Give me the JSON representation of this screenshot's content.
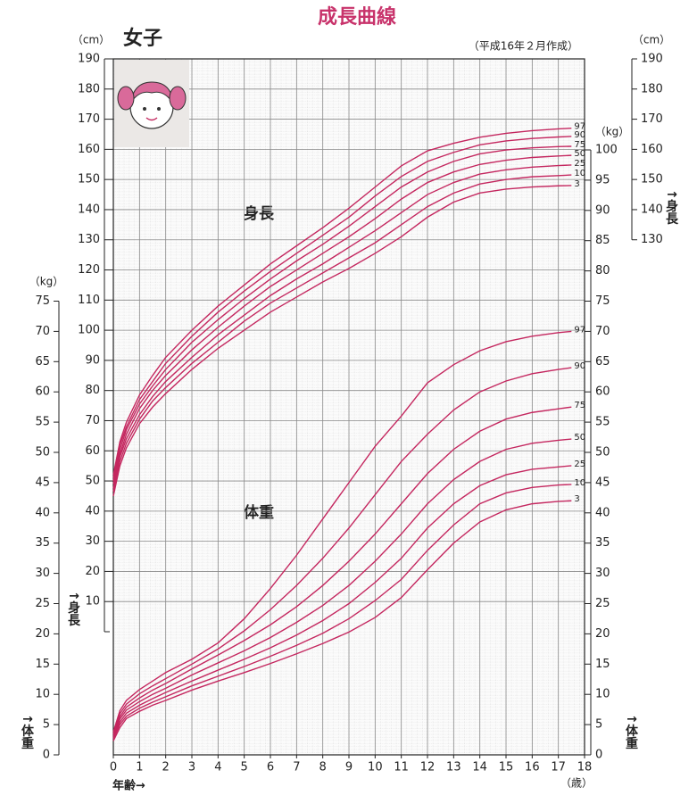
{
  "chart_data": {
    "type": "line",
    "title": "成長曲線",
    "subtitle": "女子",
    "note": "（平成16年２月作成）",
    "xlabel": "年齢→",
    "xunit": "（歳）",
    "ylabel": "↑身長",
    "yunit": "（cm）",
    "y2label": "↑体重",
    "y2unit": "（kg）",
    "annotations": [
      "身長",
      "体重"
    ],
    "x": [
      0,
      0.25,
      0.5,
      1,
      1.5,
      2,
      3,
      4,
      5,
      6,
      7,
      8,
      9,
      10,
      11,
      12,
      13,
      14,
      15,
      16,
      17,
      17.5
    ],
    "xlim": [
      0,
      18
    ],
    "xticks": [
      0,
      1,
      2,
      3,
      4,
      5,
      6,
      7,
      8,
      9,
      10,
      11,
      12,
      13,
      14,
      15,
      16,
      17,
      18
    ],
    "ylim": [
      0,
      190
    ],
    "yticks": [
      10,
      20,
      30,
      40,
      50,
      60,
      70,
      80,
      90,
      100,
      110,
      120,
      130,
      140,
      150,
      160,
      170,
      180,
      190
    ],
    "yticks_right": [
      130,
      140,
      150,
      160,
      170,
      180,
      190
    ],
    "y2lim": [
      0,
      100
    ],
    "y2ticks": [
      0,
      5,
      10,
      15,
      20,
      25,
      30,
      35,
      40,
      45,
      50,
      55,
      60,
      65,
      70,
      75,
      80,
      85,
      90,
      95,
      100
    ],
    "y2ticks_left": [
      0,
      5,
      10,
      15,
      20,
      25,
      30,
      35,
      40,
      45,
      50,
      55,
      60,
      65,
      70,
      75
    ],
    "grid": true,
    "series": [
      {
        "name": "97",
        "color": "#c4275f",
        "values": [
          52,
          63,
          69.5,
          78.5,
          85,
          91,
          100,
          108,
          115,
          122,
          128,
          134,
          140.5,
          147.5,
          154.5,
          159.5,
          162,
          164,
          165.3,
          166.2,
          166.8,
          167
        ]
      },
      {
        "name": "90",
        "color": "#c4275f",
        "values": [
          51,
          62,
          68,
          77,
          83,
          89,
          98,
          106,
          113,
          119.5,
          125.5,
          131.5,
          137.5,
          144.5,
          151,
          156,
          159,
          161.5,
          162.8,
          163.6,
          164.1,
          164.3
        ]
      },
      {
        "name": "75",
        "color": "#c4275f",
        "values": [
          50,
          60.5,
          67,
          75.5,
          81.5,
          87,
          96,
          103.5,
          110.5,
          117,
          123,
          128.5,
          134.5,
          141,
          147.5,
          152.5,
          156,
          158.5,
          159.8,
          160.5,
          160.9,
          161
        ]
      },
      {
        "name": "50",
        "color": "#c4275f",
        "values": [
          49,
          59,
          65.5,
          74,
          80,
          85,
          93.5,
          101,
          108,
          114.5,
          120,
          125.5,
          131,
          137,
          143.5,
          149,
          152.5,
          155,
          156.4,
          157.3,
          157.8,
          158
        ]
      },
      {
        "name": "25",
        "color": "#c4275f",
        "values": [
          47.5,
          58,
          64,
          72,
          78,
          83,
          91,
          98.5,
          105,
          111.5,
          117,
          122,
          127.5,
          133,
          139,
          145,
          149,
          151.8,
          153.2,
          154.1,
          154.6,
          154.8
        ]
      },
      {
        "name": "10",
        "color": "#c4275f",
        "values": [
          46.5,
          56.5,
          62.5,
          70.5,
          76.5,
          81,
          89,
          96,
          103,
          109,
          114,
          119,
          124,
          129,
          135,
          141,
          145.5,
          148.5,
          150,
          150.9,
          151.3,
          151.5
        ]
      },
      {
        "name": "3",
        "color": "#c4275f",
        "values": [
          45,
          55,
          61,
          69,
          74.5,
          79,
          87,
          94,
          100,
          106,
          111,
          116,
          120.5,
          125.5,
          131,
          137.5,
          142.5,
          145.5,
          146.8,
          147.5,
          147.9,
          148
        ]
      },
      {
        "name": "97",
        "color": "#c4275f",
        "axis": "y2",
        "values": [
          3.8,
          7.3,
          9,
          10.8,
          12.2,
          13.6,
          15.8,
          18.5,
          22.5,
          27.5,
          33,
          39,
          45,
          51,
          56,
          61.5,
          64.5,
          66.8,
          68.3,
          69.2,
          69.8,
          70
        ]
      },
      {
        "name": "90",
        "color": "#c4275f",
        "axis": "y2",
        "values": [
          3.5,
          6.8,
          8.4,
          10.1,
          11.4,
          12.6,
          15,
          17.5,
          20.5,
          24,
          28,
          32.5,
          37.5,
          43,
          48.5,
          53,
          57,
          60,
          61.8,
          63,
          63.7,
          64
        ]
      },
      {
        "name": "75",
        "color": "#c4275f",
        "axis": "y2",
        "values": [
          3.3,
          6.3,
          7.9,
          9.4,
          10.7,
          11.8,
          14.2,
          16.5,
          18.9,
          21.5,
          24.5,
          28,
          32,
          36.5,
          41.5,
          46.5,
          50.5,
          53.5,
          55.5,
          56.6,
          57.2,
          57.5
        ]
      },
      {
        "name": "50",
        "color": "#c4275f",
        "axis": "y2",
        "values": [
          3,
          5.9,
          7.4,
          8.8,
          10,
          11,
          13.2,
          15.2,
          17.2,
          19.4,
          21.9,
          24.7,
          28,
          32,
          36.5,
          41.5,
          45.5,
          48.5,
          50.5,
          51.5,
          52,
          52.2
        ]
      },
      {
        "name": "25",
        "color": "#c4275f",
        "axis": "y2",
        "values": [
          2.8,
          5.4,
          6.9,
          8.2,
          9.3,
          10.3,
          12.2,
          14,
          15.8,
          17.7,
          19.8,
          22.2,
          25,
          28.5,
          32.5,
          37.5,
          41.5,
          44.5,
          46.3,
          47.2,
          47.6,
          47.8
        ]
      },
      {
        "name": "10",
        "color": "#c4275f",
        "axis": "y2",
        "values": [
          2.6,
          5,
          6.4,
          7.7,
          8.7,
          9.6,
          11.4,
          13,
          14.6,
          16.3,
          18.1,
          20.1,
          22.5,
          25.5,
          29,
          33.8,
          38,
          41.5,
          43.3,
          44.2,
          44.6,
          44.7
        ]
      },
      {
        "name": "3",
        "color": "#c4275f",
        "axis": "y2",
        "values": [
          2.3,
          4.5,
          6,
          7.2,
          8.2,
          9,
          10.7,
          12.2,
          13.6,
          15.1,
          16.7,
          18.4,
          20.3,
          22.7,
          26,
          30.6,
          35,
          38.5,
          40.5,
          41.5,
          41.9,
          42
        ]
      }
    ]
  }
}
